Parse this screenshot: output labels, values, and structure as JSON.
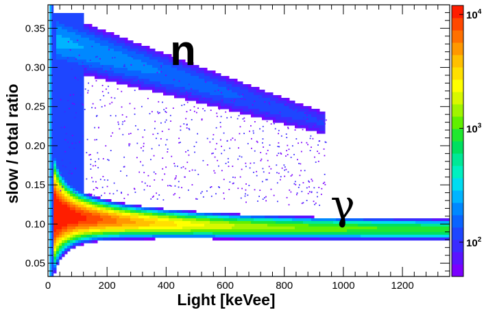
{
  "chart_data": {
    "type": "heatmap",
    "title": "",
    "xlabel": "Light [keVee]",
    "ylabel": "slow / total  ratio",
    "xlim": [
      0,
      1360
    ],
    "ylim": [
      0.033,
      0.38
    ],
    "x_ticks": [
      0,
      200,
      400,
      600,
      800,
      1000,
      1200
    ],
    "x_tick_labels": [
      "0",
      "200",
      "400",
      "600",
      "800",
      "1000",
      "1200"
    ],
    "y_ticks": [
      0.05,
      0.1,
      0.15,
      0.2,
      0.25,
      0.3,
      0.35
    ],
    "y_tick_labels": [
      "0.05",
      "0.10",
      "0.15",
      "0.20",
      "0.25",
      "0.30",
      "0.35"
    ],
    "z_scale": "log",
    "zlim": [
      50,
      12000
    ],
    "colorbar_labels": [
      {
        "base": "10",
        "exp": "2",
        "value": 100
      },
      {
        "base": "10",
        "exp": "3",
        "value": 1000
      },
      {
        "base": "10",
        "exp": "4",
        "value": 10000
      }
    ],
    "palette": [
      "#7b00ff",
      "#5a14ff",
      "#3a2cff",
      "#1e46ff",
      "#0a64ff",
      "#0088ff",
      "#00b4ff",
      "#00dcf0",
      "#00f0c0",
      "#00e896",
      "#00e060",
      "#20e830",
      "#60f000",
      "#a0f400",
      "#d8f800",
      "#ffff00",
      "#ffe000",
      "#ffc000",
      "#ff9800",
      "#ff7000",
      "#ff4800",
      "#ff1e00"
    ],
    "annotations": [
      "n",
      "γ"
    ],
    "bands": [
      {
        "label": "γ",
        "centroid_x_keVee": [
          40,
          150,
          300,
          600,
          900,
          1200,
          1350
        ],
        "centroid_y": [
          0.112,
          0.105,
          0.1,
          0.097,
          0.095,
          0.094,
          0.093
        ]
      },
      {
        "label": "n",
        "x_range_keVee": [
          30,
          930
        ],
        "y_range": [
          0.24,
          0.355
        ]
      }
    ]
  }
}
